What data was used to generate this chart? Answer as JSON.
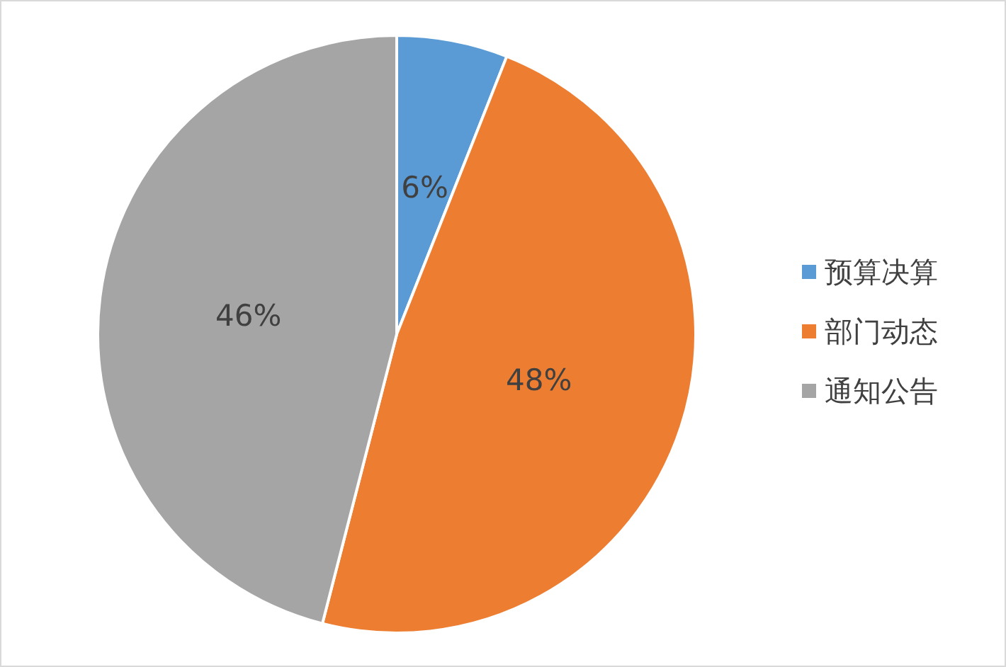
{
  "chart_data": {
    "type": "pie",
    "categories": [
      "预算决算",
      "部门动态",
      "通知公告"
    ],
    "values": [
      6,
      48,
      46
    ],
    "colors": [
      "#5b9bd5",
      "#ed7d31",
      "#a5a5a5"
    ],
    "value_labels": [
      "6%",
      "48%",
      "46%"
    ],
    "legend": "right"
  }
}
